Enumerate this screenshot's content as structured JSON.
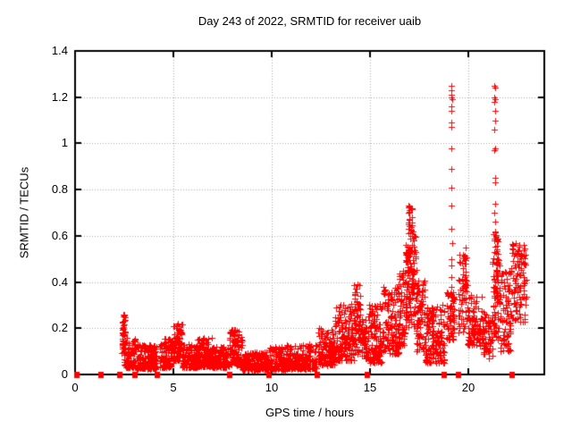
{
  "chart_data": {
    "type": "scatter",
    "title": "Day 243 of 2022, SRMTID for receiver uaib",
    "xlabel": "GPS time / hours",
    "ylabel": "SRMTID / TECUs",
    "xlim": [
      0,
      23.87
    ],
    "ylim": [
      0,
      1.4
    ],
    "x_ticks": [
      0,
      5,
      10,
      15,
      20
    ],
    "x_tick_labels": [
      "0",
      "5",
      "10",
      "15",
      "20"
    ],
    "y_ticks": [
      0,
      0.2,
      0.4,
      0.6,
      0.8,
      1.0,
      1.2,
      1.4
    ],
    "y_tick_labels": [
      "0",
      "0.2",
      "0.4",
      "0.6",
      "0.8",
      "1",
      "1.2",
      "1.4"
    ],
    "grid": true,
    "legend": "none",
    "colors": {
      "marker": "#ff0000",
      "grid": "#aaaaaa",
      "axis": "#000000",
      "background": "#ffffff"
    },
    "seed": 243,
    "series": [
      {
        "name": "srmtid-plus-markers",
        "marker": "plus",
        "outlier_points": [
          [
            19.13,
            1.25
          ],
          [
            19.16,
            1.23
          ],
          [
            19.12,
            1.21
          ],
          [
            19.15,
            1.2
          ],
          [
            19.17,
            1.19
          ],
          [
            19.13,
            1.16
          ],
          [
            19.16,
            1.14
          ],
          [
            19.12,
            1.09
          ],
          [
            19.15,
            1.07
          ],
          [
            19.14,
            0.98
          ],
          [
            19.16,
            0.89
          ],
          [
            19.12,
            0.81
          ],
          [
            19.15,
            0.73
          ],
          [
            19.13,
            0.63
          ],
          [
            19.17,
            0.57
          ],
          [
            19.14,
            0.5
          ],
          [
            19.12,
            0.47
          ],
          [
            19.15,
            0.42
          ],
          [
            19.13,
            0.38
          ],
          [
            21.33,
            1.25
          ],
          [
            21.37,
            1.24
          ],
          [
            21.34,
            1.2
          ],
          [
            21.36,
            1.19
          ],
          [
            21.32,
            1.18
          ],
          [
            21.35,
            1.14
          ],
          [
            21.38,
            1.1
          ],
          [
            21.33,
            1.06
          ],
          [
            21.36,
            0.98
          ],
          [
            21.34,
            0.97
          ],
          [
            21.39,
            0.85
          ],
          [
            21.35,
            0.83
          ],
          [
            21.37,
            0.74
          ],
          [
            21.33,
            0.7
          ],
          [
            21.36,
            0.66
          ],
          [
            16.98,
            0.73
          ],
          [
            17.0,
            0.7
          ],
          [
            17.02,
            0.67
          ],
          [
            17.15,
            0.6
          ],
          [
            2.47,
            0.26
          ],
          [
            2.45,
            0.25
          ],
          [
            14.35,
            0.39
          ],
          [
            5.25,
            0.22
          ]
        ],
        "density_clusters": [
          [
            2.38,
            2.55,
            0.08,
            0.26,
            45,
            1.0
          ],
          [
            2.5,
            3.1,
            0.03,
            0.16,
            110,
            1.8
          ],
          [
            3.1,
            4.15,
            0.025,
            0.13,
            190,
            1.8
          ],
          [
            4.3,
            5.0,
            0.03,
            0.16,
            120,
            1.6
          ],
          [
            5.0,
            5.45,
            0.06,
            0.22,
            80,
            1.2
          ],
          [
            5.45,
            6.2,
            0.03,
            0.13,
            130,
            1.8
          ],
          [
            6.2,
            6.95,
            0.035,
            0.16,
            130,
            1.8
          ],
          [
            6.95,
            7.8,
            0.03,
            0.12,
            140,
            1.8
          ],
          [
            7.85,
            8.5,
            0.04,
            0.2,
            110,
            1.5
          ],
          [
            8.5,
            9.85,
            0.02,
            0.1,
            190,
            1.6
          ],
          [
            9.9,
            10.7,
            0.02,
            0.12,
            120,
            1.6
          ],
          [
            10.7,
            12.3,
            0.025,
            0.13,
            230,
            2.0
          ],
          [
            12.35,
            13.2,
            0.04,
            0.2,
            130,
            1.6
          ],
          [
            13.2,
            14.2,
            0.06,
            0.31,
            160,
            1.7
          ],
          [
            14.2,
            14.55,
            0.09,
            0.39,
            60,
            1.2
          ],
          [
            14.55,
            14.9,
            0.07,
            0.24,
            55,
            1.4
          ],
          [
            14.9,
            15.65,
            0.05,
            0.31,
            120,
            1.6
          ],
          [
            15.65,
            16.45,
            0.09,
            0.38,
            120,
            1.5
          ],
          [
            16.45,
            16.8,
            0.12,
            0.46,
            65,
            1.2
          ],
          [
            16.8,
            16.95,
            0.2,
            0.58,
            45,
            1.0
          ],
          [
            16.95,
            17.15,
            0.22,
            0.73,
            65,
            1.0
          ],
          [
            17.15,
            17.35,
            0.2,
            0.62,
            45,
            1.0
          ],
          [
            17.35,
            17.8,
            0.1,
            0.42,
            75,
            1.3
          ],
          [
            17.8,
            18.8,
            0.05,
            0.3,
            150,
            1.6
          ],
          [
            18.9,
            19.3,
            0.15,
            0.36,
            65,
            1.2
          ],
          [
            19.5,
            19.95,
            0.18,
            0.55,
            65,
            1.0
          ],
          [
            19.95,
            20.7,
            0.12,
            0.35,
            100,
            1.3
          ],
          [
            20.7,
            21.25,
            0.07,
            0.28,
            65,
            1.3
          ],
          [
            21.25,
            21.6,
            0.15,
            0.62,
            100,
            1.1
          ],
          [
            21.6,
            22.15,
            0.1,
            0.45,
            85,
            1.3
          ],
          [
            22.15,
            22.95,
            0.22,
            0.57,
            110,
            1.0
          ]
        ]
      },
      {
        "name": "data-gap-square-markers",
        "marker": "square",
        "points": [
          [
            0.07,
            0
          ],
          [
            1.3,
            0
          ],
          [
            2.28,
            0
          ],
          [
            3.05,
            0
          ],
          [
            4.2,
            0
          ],
          [
            7.85,
            0
          ],
          [
            9.85,
            0
          ],
          [
            12.3,
            0
          ],
          [
            14.85,
            0
          ],
          [
            18.8,
            0
          ],
          [
            19.5,
            0
          ],
          [
            22.25,
            0
          ]
        ]
      }
    ]
  }
}
